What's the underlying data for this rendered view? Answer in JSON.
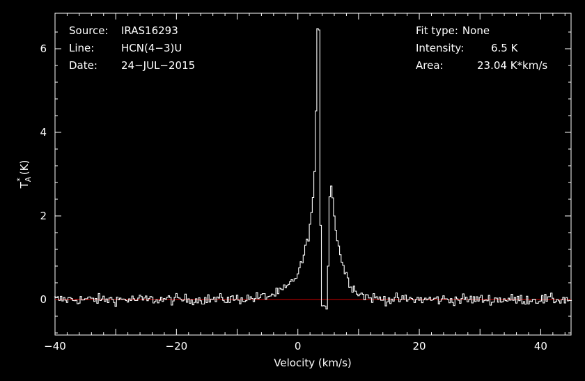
{
  "header": {
    "source_label": "Source:",
    "source_value": "IRAS16293",
    "line_label": "Line:",
    "line_value": "HCN(4−3)U",
    "date_label": "Date:",
    "date_value": "24−JUL−2015",
    "fit_label": "Fit type:",
    "fit_value": "None",
    "intensity_label": "Intensity:",
    "intensity_value": "6.5 K",
    "area_label": "Area:",
    "area_value": "23.04 K*km/s"
  },
  "chart_data": {
    "type": "line",
    "xlabel": "Velocity (km/s)",
    "ylabel_main": "T",
    "ylabel_sup": "*",
    "ylabel_sub": "A",
    "ylabel_unit": "(K)",
    "xlim": [
      -40,
      45
    ],
    "ylim": [
      -0.85,
      6.85
    ],
    "xticks": [
      -40,
      -20,
      0,
      20,
      40
    ],
    "xtick_labels": [
      "−40",
      "−20",
      "0",
      "20",
      "40"
    ],
    "yticks": [
      0,
      2,
      4,
      6
    ],
    "ytick_labels": [
      "0",
      "2",
      "4",
      "6"
    ],
    "baseline": 0,
    "colors": {
      "spectrum": "#ffffff",
      "baseline": "#cc0000",
      "axes": "#ffffff",
      "background": "#000000"
    },
    "series": [
      {
        "channel_width": 0.25,
        "x_start": -40,
        "noise_rms": 0.12,
        "peaks": [
          {
            "velocity": 3.5,
            "amplitude": 6.45
          },
          {
            "velocity": 5.4,
            "amplitude": 2.95
          }
        ],
        "absorption_velocity": 4.2
      }
    ]
  }
}
